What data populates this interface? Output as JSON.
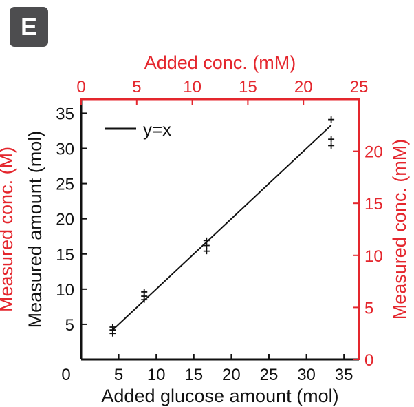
{
  "panel_label": "E",
  "colors": {
    "primary_axis": "#111111",
    "secondary_axis": "#e4262d",
    "background": "#ffffff",
    "badge": "#4d4d4f"
  },
  "chart_data": {
    "type": "scatter",
    "xlabel": "Added glucose amount (mol)",
    "ylabel": "Measured amount (mol)",
    "x2label": "Added conc. (mM)",
    "y2label": "Measured conc. (mM)",
    "y2label_left_partial": "Measured conc. (M)",
    "xlim": [
      0,
      37
    ],
    "ylim": [
      0,
      37
    ],
    "x2lim": [
      0,
      25
    ],
    "y2lim": [
      0,
      25
    ],
    "xticks": [
      "0",
      "5",
      "10",
      "15",
      "20",
      "25",
      "30",
      "35"
    ],
    "yticks": [
      "5",
      "10",
      "15",
      "20",
      "25",
      "30",
      "35"
    ],
    "x2ticks": [
      "0",
      "5",
      "10",
      "15",
      "20",
      "25"
    ],
    "y2ticks": [
      "0",
      "5",
      "10",
      "15",
      "20"
    ],
    "legend": {
      "entries": [
        "y=x"
      ],
      "placement": "top-left"
    },
    "grid": false,
    "series": [
      {
        "marker": "+",
        "points": [
          {
            "x": 4.2,
            "y": 3.7
          },
          {
            "x": 4.2,
            "y": 4.2
          },
          {
            "x": 4.2,
            "y": 4.6
          },
          {
            "x": 8.4,
            "y": 8.5
          },
          {
            "x": 8.4,
            "y": 9.0
          },
          {
            "x": 8.4,
            "y": 9.6
          },
          {
            "x": 16.7,
            "y": 15.4
          },
          {
            "x": 16.7,
            "y": 16.2
          },
          {
            "x": 16.7,
            "y": 16.9
          },
          {
            "x": 33.3,
            "y": 30.4
          },
          {
            "x": 33.3,
            "y": 31.3
          },
          {
            "x": 33.3,
            "y": 34.1
          }
        ]
      }
    ],
    "reference_line": {
      "name": "y=x",
      "x": [
        4.2,
        33.3
      ],
      "y": [
        4.2,
        33.3
      ]
    }
  }
}
